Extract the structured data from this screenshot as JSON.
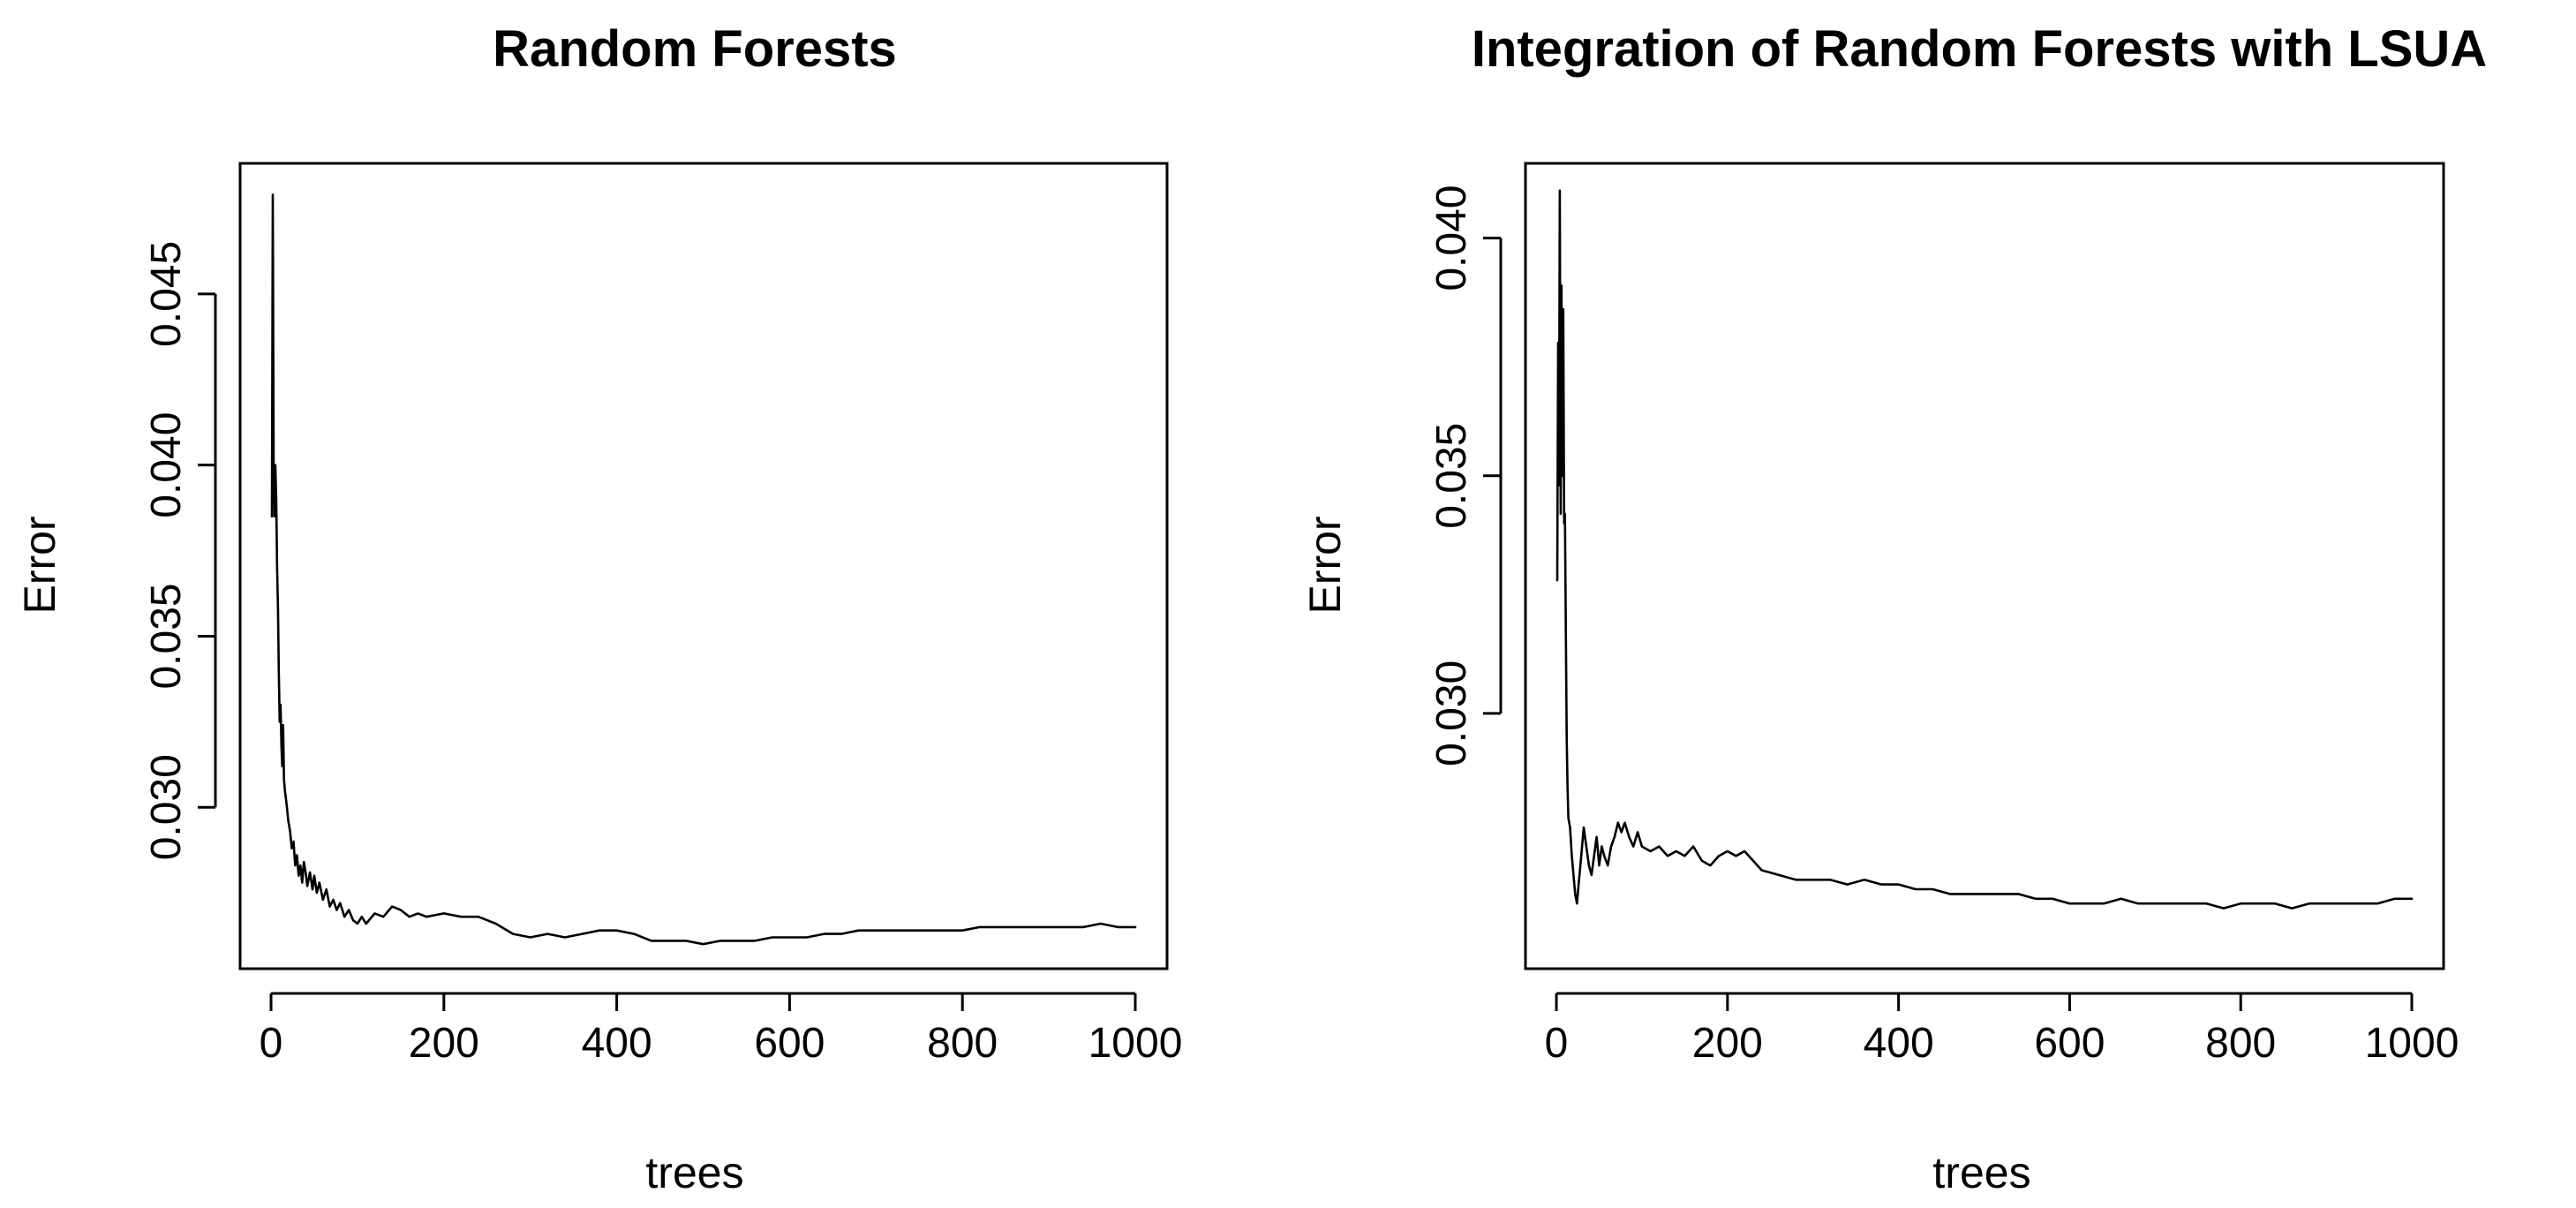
{
  "chart_data": [
    {
      "type": "line",
      "title": "Random Forests",
      "xlabel": "trees",
      "ylabel": "Error",
      "xlim": [
        1,
        1000
      ],
      "ylim": [
        0.0258,
        0.0483
      ],
      "x_ticks": [
        0,
        200,
        400,
        600,
        800,
        1000
      ],
      "x_tick_labels": [
        "0",
        "200",
        "400",
        "600",
        "800",
        "1000"
      ],
      "y_ticks": [
        0.03,
        0.035,
        0.04,
        0.045
      ],
      "y_tick_labels": [
        "0.030",
        "0.035",
        "0.040",
        "0.045"
      ],
      "grid": false,
      "series": [
        {
          "points": [
            [
              1,
              0.0385
            ],
            [
              2,
              0.0479
            ],
            [
              3,
              0.04
            ],
            [
              4,
              0.0385
            ],
            [
              5,
              0.04
            ],
            [
              6,
              0.039
            ],
            [
              7,
              0.037
            ],
            [
              8,
              0.0358
            ],
            [
              9,
              0.034
            ],
            [
              10,
              0.0325
            ],
            [
              11,
              0.033
            ],
            [
              12,
              0.0318
            ],
            [
              13,
              0.0312
            ],
            [
              14,
              0.0324
            ],
            [
              15,
              0.0308
            ],
            [
              16,
              0.0305
            ],
            [
              18,
              0.0301
            ],
            [
              20,
              0.0296
            ],
            [
              22,
              0.0293
            ],
            [
              24,
              0.0288
            ],
            [
              26,
              0.029
            ],
            [
              28,
              0.0283
            ],
            [
              30,
              0.0286
            ],
            [
              32,
              0.028
            ],
            [
              34,
              0.0283
            ],
            [
              36,
              0.0278
            ],
            [
              38,
              0.0284
            ],
            [
              40,
              0.0281
            ],
            [
              42,
              0.0277
            ],
            [
              45,
              0.0281
            ],
            [
              48,
              0.0276
            ],
            [
              50,
              0.028
            ],
            [
              53,
              0.0275
            ],
            [
              56,
              0.0278
            ],
            [
              60,
              0.0273
            ],
            [
              64,
              0.0276
            ],
            [
              68,
              0.0271
            ],
            [
              72,
              0.0273
            ],
            [
              76,
              0.027
            ],
            [
              80,
              0.0272
            ],
            [
              85,
              0.0268
            ],
            [
              90,
              0.027
            ],
            [
              95,
              0.0267
            ],
            [
              100,
              0.0266
            ],
            [
              105,
              0.0268
            ],
            [
              110,
              0.0266
            ],
            [
              120,
              0.0269
            ],
            [
              130,
              0.0268
            ],
            [
              140,
              0.0271
            ],
            [
              150,
              0.027
            ],
            [
              160,
              0.0268
            ],
            [
              170,
              0.0269
            ],
            [
              180,
              0.0268
            ],
            [
              200,
              0.0269
            ],
            [
              220,
              0.0268
            ],
            [
              240,
              0.0268
            ],
            [
              260,
              0.0266
            ],
            [
              280,
              0.0263
            ],
            [
              300,
              0.0262
            ],
            [
              320,
              0.0263
            ],
            [
              340,
              0.0262
            ],
            [
              360,
              0.0263
            ],
            [
              380,
              0.0264
            ],
            [
              400,
              0.0264
            ],
            [
              420,
              0.0263
            ],
            [
              440,
              0.0261
            ],
            [
              460,
              0.0261
            ],
            [
              480,
              0.0261
            ],
            [
              500,
              0.026
            ],
            [
              520,
              0.0261
            ],
            [
              540,
              0.0261
            ],
            [
              560,
              0.0261
            ],
            [
              580,
              0.0262
            ],
            [
              600,
              0.0262
            ],
            [
              620,
              0.0262
            ],
            [
              640,
              0.0263
            ],
            [
              660,
              0.0263
            ],
            [
              680,
              0.0264
            ],
            [
              700,
              0.0264
            ],
            [
              720,
              0.0264
            ],
            [
              740,
              0.0264
            ],
            [
              760,
              0.0264
            ],
            [
              780,
              0.0264
            ],
            [
              800,
              0.0264
            ],
            [
              820,
              0.0265
            ],
            [
              840,
              0.0265
            ],
            [
              860,
              0.0265
            ],
            [
              880,
              0.0265
            ],
            [
              900,
              0.0265
            ],
            [
              920,
              0.0265
            ],
            [
              940,
              0.0265
            ],
            [
              960,
              0.0266
            ],
            [
              980,
              0.0265
            ],
            [
              1000,
              0.0265
            ]
          ]
        }
      ]
    },
    {
      "type": "line",
      "title": "Integration of Random Forests with LSUA",
      "xlabel": "trees",
      "ylabel": "Error",
      "xlim": [
        1,
        1000
      ],
      "ylim": [
        0.025,
        0.0412
      ],
      "x_ticks": [
        0,
        200,
        400,
        600,
        800,
        1000
      ],
      "x_tick_labels": [
        "0",
        "200",
        "400",
        "600",
        "800",
        "1000"
      ],
      "y_ticks": [
        0.03,
        0.035,
        0.04
      ],
      "y_tick_labels": [
        "0.030",
        "0.035",
        "0.040"
      ],
      "grid": false,
      "series": [
        {
          "points": [
            [
              1,
              0.0328
            ],
            [
              2,
              0.0378
            ],
            [
              3,
              0.0348
            ],
            [
              4,
              0.041
            ],
            [
              5,
              0.0342
            ],
            [
              6,
              0.039
            ],
            [
              7,
              0.035
            ],
            [
              8,
              0.0385
            ],
            [
              9,
              0.034
            ],
            [
              10,
              0.0342
            ],
            [
              11,
              0.0318
            ],
            [
              12,
              0.0295
            ],
            [
              13,
              0.0285
            ],
            [
              14,
              0.0278
            ],
            [
              16,
              0.0276
            ],
            [
              18,
              0.027
            ],
            [
              20,
              0.0266
            ],
            [
              22,
              0.0262
            ],
            [
              24,
              0.026
            ],
            [
              26,
              0.0264
            ],
            [
              28,
              0.0268
            ],
            [
              30,
              0.0272
            ],
            [
              32,
              0.0276
            ],
            [
              35,
              0.0272
            ],
            [
              38,
              0.0268
            ],
            [
              41,
              0.0266
            ],
            [
              44,
              0.027
            ],
            [
              47,
              0.0274
            ],
            [
              50,
              0.0268
            ],
            [
              53,
              0.0272
            ],
            [
              56,
              0.027
            ],
            [
              60,
              0.0268
            ],
            [
              64,
              0.0272
            ],
            [
              68,
              0.0274
            ],
            [
              72,
              0.0277
            ],
            [
              76,
              0.0275
            ],
            [
              80,
              0.0277
            ],
            [
              85,
              0.0274
            ],
            [
              90,
              0.0272
            ],
            [
              95,
              0.0275
            ],
            [
              100,
              0.0272
            ],
            [
              110,
              0.0271
            ],
            [
              120,
              0.0272
            ],
            [
              130,
              0.027
            ],
            [
              140,
              0.0271
            ],
            [
              150,
              0.027
            ],
            [
              160,
              0.0272
            ],
            [
              170,
              0.0269
            ],
            [
              180,
              0.0268
            ],
            [
              190,
              0.027
            ],
            [
              200,
              0.0271
            ],
            [
              210,
              0.027
            ],
            [
              220,
              0.0271
            ],
            [
              230,
              0.0269
            ],
            [
              240,
              0.0267
            ],
            [
              260,
              0.0266
            ],
            [
              280,
              0.0265
            ],
            [
              300,
              0.0265
            ],
            [
              320,
              0.0265
            ],
            [
              340,
              0.0264
            ],
            [
              360,
              0.0265
            ],
            [
              380,
              0.0264
            ],
            [
              400,
              0.0264
            ],
            [
              420,
              0.0263
            ],
            [
              440,
              0.0263
            ],
            [
              460,
              0.0262
            ],
            [
              480,
              0.0262
            ],
            [
              500,
              0.0262
            ],
            [
              520,
              0.0262
            ],
            [
              540,
              0.0262
            ],
            [
              560,
              0.0261
            ],
            [
              580,
              0.0261
            ],
            [
              600,
              0.026
            ],
            [
              620,
              0.026
            ],
            [
              640,
              0.026
            ],
            [
              660,
              0.0261
            ],
            [
              680,
              0.026
            ],
            [
              700,
              0.026
            ],
            [
              720,
              0.026
            ],
            [
              740,
              0.026
            ],
            [
              760,
              0.026
            ],
            [
              780,
              0.0259
            ],
            [
              800,
              0.026
            ],
            [
              820,
              0.026
            ],
            [
              840,
              0.026
            ],
            [
              860,
              0.0259
            ],
            [
              880,
              0.026
            ],
            [
              900,
              0.026
            ],
            [
              920,
              0.026
            ],
            [
              940,
              0.026
            ],
            [
              960,
              0.026
            ],
            [
              980,
              0.0261
            ],
            [
              1000,
              0.0261
            ]
          ]
        }
      ]
    }
  ]
}
